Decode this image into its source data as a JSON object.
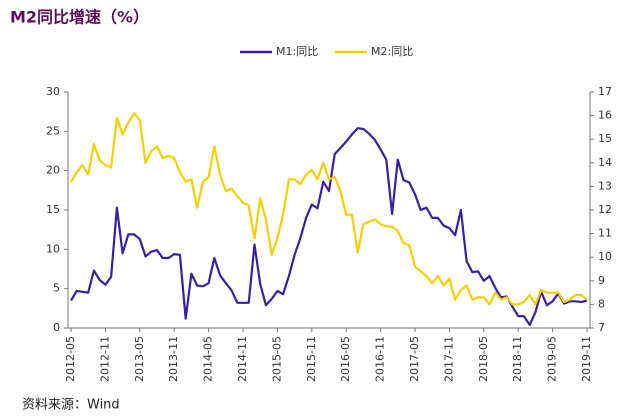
{
  "chart_data": {
    "type": "line",
    "title": "M2同比增速（%）",
    "source": "资料来源：Wind",
    "categories": [
      "2012-05",
      null,
      null,
      null,
      null,
      null,
      "2012-11",
      null,
      null,
      null,
      null,
      null,
      "2013-05",
      null,
      null,
      null,
      null,
      null,
      "2013-11",
      null,
      null,
      null,
      null,
      null,
      "2014-05",
      null,
      null,
      null,
      null,
      null,
      "2014-11",
      null,
      null,
      null,
      null,
      null,
      "2015-05",
      null,
      null,
      null,
      null,
      null,
      "2015-11",
      null,
      null,
      null,
      null,
      null,
      "2016-05",
      null,
      null,
      null,
      null,
      null,
      "2016-11",
      null,
      null,
      null,
      null,
      null,
      "2017-05",
      null,
      null,
      null,
      null,
      null,
      "2017-11",
      null,
      null,
      null,
      null,
      null,
      "2018-05",
      null,
      null,
      null,
      null,
      null,
      "2018-11",
      null,
      null,
      null,
      null,
      null,
      "2019-05",
      null,
      null,
      null,
      null,
      null,
      "2019-11"
    ],
    "series": [
      {
        "name": "M1:同比",
        "color": "#3b1fa3",
        "values": [
          3.5,
          4.7,
          4.6,
          4.5,
          7.3,
          6.1,
          5.5,
          6.5,
          15.3,
          9.5,
          11.9,
          11.9,
          11.3,
          9.1,
          9.7,
          9.9,
          8.9,
          8.9,
          9.4,
          9.3,
          1.2,
          6.9,
          5.4,
          5.3,
          5.7,
          8.9,
          6.7,
          5.7,
          4.8,
          3.2,
          3.2,
          3.2,
          10.6,
          5.6,
          2.9,
          3.7,
          4.7,
          4.3,
          6.6,
          9.3,
          11.4,
          14.0,
          15.7,
          15.2,
          18.6,
          17.4,
          22.1,
          22.9,
          23.7,
          24.6,
          25.4,
          25.3,
          24.7,
          23.9,
          22.7,
          21.4,
          14.5,
          21.4,
          18.8,
          18.5,
          17.0,
          15.0,
          15.3,
          14.0,
          14.0,
          13.0,
          12.7,
          11.8,
          15.0,
          8.5,
          7.1,
          7.2,
          6.0,
          6.6,
          5.1,
          3.9,
          4.0,
          2.7,
          1.5,
          1.5,
          0.4,
          2.0,
          4.6,
          2.9,
          3.4,
          4.4,
          3.1,
          3.4,
          3.4,
          3.3,
          3.5
        ]
      },
      {
        "name": "M2:同比",
        "color": "#f2d000",
        "axis": "y2",
        "values": [
          13.2,
          13.6,
          13.9,
          13.5,
          14.8,
          14.1,
          13.9,
          13.8,
          15.9,
          15.2,
          15.7,
          16.1,
          15.8,
          14.0,
          14.5,
          14.7,
          14.2,
          14.3,
          14.2,
          13.6,
          13.2,
          13.3,
          12.1,
          13.2,
          13.4,
          14.7,
          13.5,
          12.8,
          12.9,
          12.6,
          12.3,
          12.2,
          10.8,
          12.5,
          11.6,
          10.1,
          10.8,
          11.8,
          13.3,
          13.3,
          13.1,
          13.5,
          13.7,
          13.3,
          14.0,
          13.3,
          13.4,
          12.8,
          11.8,
          11.8,
          10.2,
          11.4,
          11.5,
          11.6,
          11.4,
          11.3,
          11.3,
          11.1,
          10.6,
          10.5,
          9.6,
          9.4,
          9.2,
          8.9,
          9.2,
          8.8,
          9.1,
          8.2,
          8.6,
          8.8,
          8.2,
          8.3,
          8.3,
          8.0,
          8.5,
          8.2,
          8.3,
          8.0,
          8.0,
          8.1,
          8.4,
          8.0,
          8.6,
          8.5,
          8.5,
          8.5,
          8.1,
          8.2,
          8.4,
          8.4,
          8.2
        ]
      }
    ],
    "ylim": [
      0,
      30
    ],
    "yticks": [
      0,
      5,
      10,
      15,
      20,
      25,
      30
    ],
    "y2lim": [
      7,
      17
    ],
    "y2ticks": [
      7,
      8,
      9,
      10,
      11,
      12,
      13,
      14,
      15,
      16,
      17
    ]
  }
}
